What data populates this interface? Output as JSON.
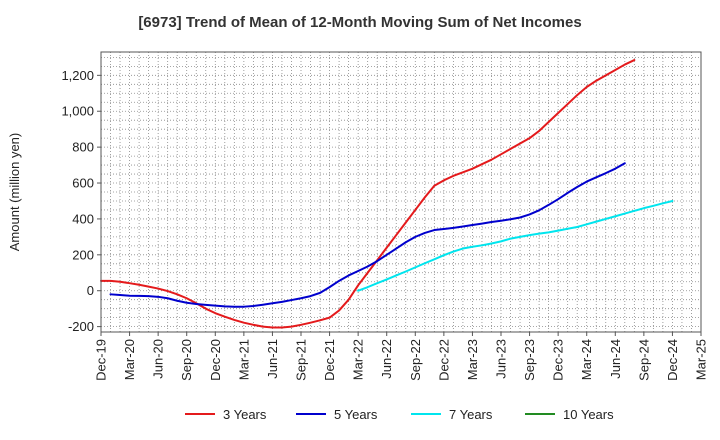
{
  "chart_data": {
    "type": "line",
    "title": "[6973]  Trend of Mean of 12-Month Moving Sum of Net Incomes",
    "ylabel": "Amount (million yen)",
    "xlabel": "",
    "ylim": [
      -230,
      1330
    ],
    "yticks": [
      -200,
      0,
      200,
      400,
      600,
      800,
      1000,
      1200
    ],
    "ytick_labels": [
      "-200",
      "0",
      "200",
      "400",
      "600",
      "800",
      "1,000",
      "1,200"
    ],
    "x_tick_labels": [
      "Dec-19",
      "Mar-20",
      "Jun-20",
      "Sep-20",
      "Dec-20",
      "Mar-21",
      "Jun-21",
      "Sep-21",
      "Dec-21",
      "Mar-22",
      "Jun-22",
      "Sep-22",
      "Dec-22",
      "Mar-23",
      "Jun-23",
      "Sep-23",
      "Dec-23",
      "Mar-24",
      "Jun-24",
      "Sep-24",
      "Dec-24",
      "Mar-25"
    ],
    "grid": true,
    "legend_position": "bottom",
    "series": [
      {
        "name": "3 Years",
        "color": "#e41a1c",
        "start_index": 0,
        "values": [
          55,
          55,
          50,
          42,
          33,
          23,
          12,
          -2,
          -20,
          -42,
          -70,
          -100,
          -125,
          -145,
          -163,
          -178,
          -190,
          -200,
          -205,
          -205,
          -200,
          -190,
          -178,
          -165,
          -150,
          -110,
          -50,
          30,
          100,
          170,
          240,
          310,
          380,
          450,
          520,
          585,
          615,
          640,
          660,
          680,
          705,
          730,
          760,
          790,
          820,
          850,
          890,
          940,
          990,
          1040,
          1090,
          1135,
          1170,
          1200,
          1230,
          1260,
          1285
        ]
      },
      {
        "name": "5 Years",
        "color": "#0000cd",
        "start_index": 1,
        "values": [
          -20,
          -24,
          -28,
          -29,
          -30,
          -34,
          -42,
          -56,
          -67,
          -74,
          -79,
          -83,
          -87,
          -89,
          -89,
          -85,
          -78,
          -70,
          -62,
          -52,
          -42,
          -30,
          -12,
          20,
          55,
          85,
          110,
          135,
          165,
          200,
          235,
          270,
          300,
          322,
          338,
          344,
          350,
          358,
          366,
          374,
          383,
          390,
          398,
          408,
          425,
          448,
          478,
          510,
          545,
          578,
          608,
          632,
          655,
          680,
          710
        ]
      },
      {
        "name": "7 Years",
        "color": "#00e5ee",
        "start_index": 27,
        "values": [
          0,
          20,
          42,
          63,
          85,
          107,
          130,
          153,
          175,
          198,
          218,
          235,
          245,
          253,
          263,
          275,
          290,
          300,
          310,
          318,
          325,
          335,
          345,
          355,
          370,
          385,
          400,
          415,
          430,
          445,
          460,
          473,
          487,
          500
        ]
      },
      {
        "name": "10 Years",
        "color": "#228b22",
        "start_index": 0,
        "values": []
      }
    ]
  }
}
